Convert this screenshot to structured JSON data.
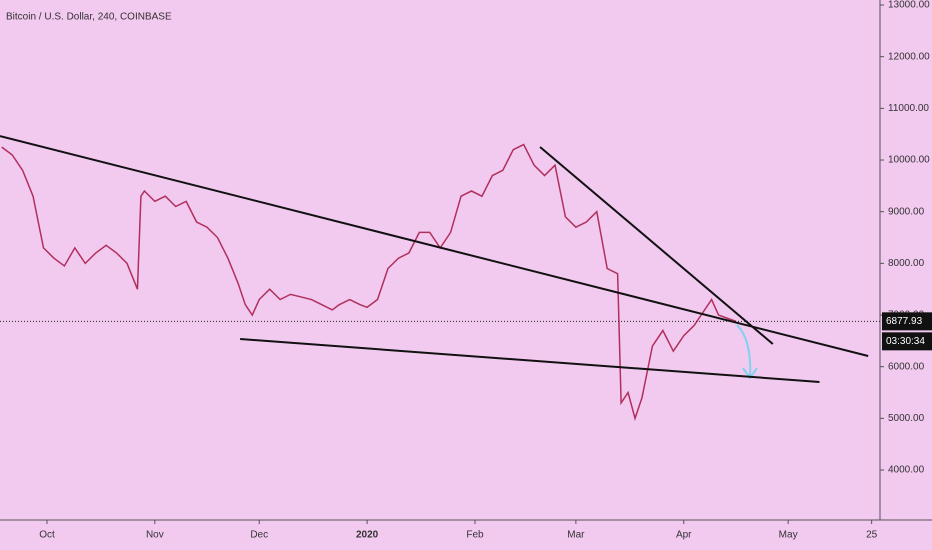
{
  "chart_data": {
    "type": "line",
    "title": "Bitcoin / U.S. Dollar, 240, COINBASE",
    "color": "#b0305c",
    "x": [
      -13,
      -10,
      -7,
      -4,
      -1,
      2,
      5,
      8,
      11,
      14,
      17,
      20,
      23,
      26,
      27,
      28,
      31,
      34,
      37,
      40,
      43,
      46,
      49,
      52,
      55,
      57,
      59,
      61,
      64,
      67,
      70,
      73,
      76,
      79,
      82,
      84,
      87,
      90,
      92,
      95,
      98,
      101,
      104,
      107,
      110,
      113,
      116,
      119,
      122,
      125,
      128,
      131,
      134,
      137,
      140,
      143,
      146,
      149,
      152,
      155,
      158,
      161,
      164,
      165,
      167,
      169,
      171,
      174,
      177,
      180,
      183,
      186,
      189,
      191,
      193,
      195,
      198
    ],
    "values": [
      10250,
      10100,
      9800,
      9300,
      8300,
      8100,
      7950,
      8300,
      8000,
      8200,
      8350,
      8200,
      8000,
      7500,
      9300,
      9400,
      9200,
      9300,
      9100,
      9200,
      8800,
      8700,
      8500,
      8100,
      7600,
      7200,
      7000,
      7300,
      7500,
      7300,
      7400,
      7350,
      7300,
      7200,
      7100,
      7200,
      7300,
      7200,
      7150,
      7300,
      7900,
      8100,
      8200,
      8600,
      8600,
      8300,
      8600,
      9300,
      9400,
      9300,
      9700,
      9800,
      10200,
      10300,
      9900,
      9700,
      9900,
      8900,
      8700,
      8800,
      9000,
      7900,
      7800,
      5300,
      5500,
      5000,
      5400,
      6400,
      6700,
      6300,
      6600,
      6800,
      7100,
      7300,
      7000,
      6950,
      6877.93
    ],
    "xlim": [
      -13.5,
      239.4
    ],
    "ylim": [
      3033,
      13097
    ],
    "xticks": [
      {
        "value": 0,
        "label": "Oct"
      },
      {
        "value": 31,
        "label": "Nov"
      },
      {
        "value": 61,
        "label": "Dec"
      },
      {
        "value": 92,
        "label": "2020"
      },
      {
        "value": 123,
        "label": "Feb"
      },
      {
        "value": 152,
        "label": "Mar"
      },
      {
        "value": 183,
        "label": "Apr"
      },
      {
        "value": 213,
        "label": "May"
      },
      {
        "value": 237,
        "label": "25"
      }
    ],
    "yticks": [
      {
        "value": 4000,
        "label": "4000.00"
      },
      {
        "value": 5000,
        "label": "5000.00"
      },
      {
        "value": 6000,
        "label": "6000.00"
      },
      {
        "value": 7000,
        "label": "7000.00"
      },
      {
        "value": 8000,
        "label": "8000.00"
      },
      {
        "value": 9000,
        "label": "9000.00"
      },
      {
        "value": 10000,
        "label": "10000.00"
      },
      {
        "value": 11000,
        "label": "11000.00"
      },
      {
        "value": 12000,
        "label": "12000.00"
      },
      {
        "value": 13000,
        "label": "13000.00"
      }
    ],
    "last_price": 6877.93,
    "countdown": "03:30:34",
    "trendlines": [
      {
        "x": [
          -13.5,
          236
        ],
        "y": [
          10464,
          6207
        ]
      },
      {
        "x": [
          55.5,
          222
        ],
        "y": [
          6536,
          5704
        ]
      },
      {
        "x": [
          141.7,
          208.6
        ],
        "y": [
          10252,
          6439
        ]
      }
    ]
  }
}
